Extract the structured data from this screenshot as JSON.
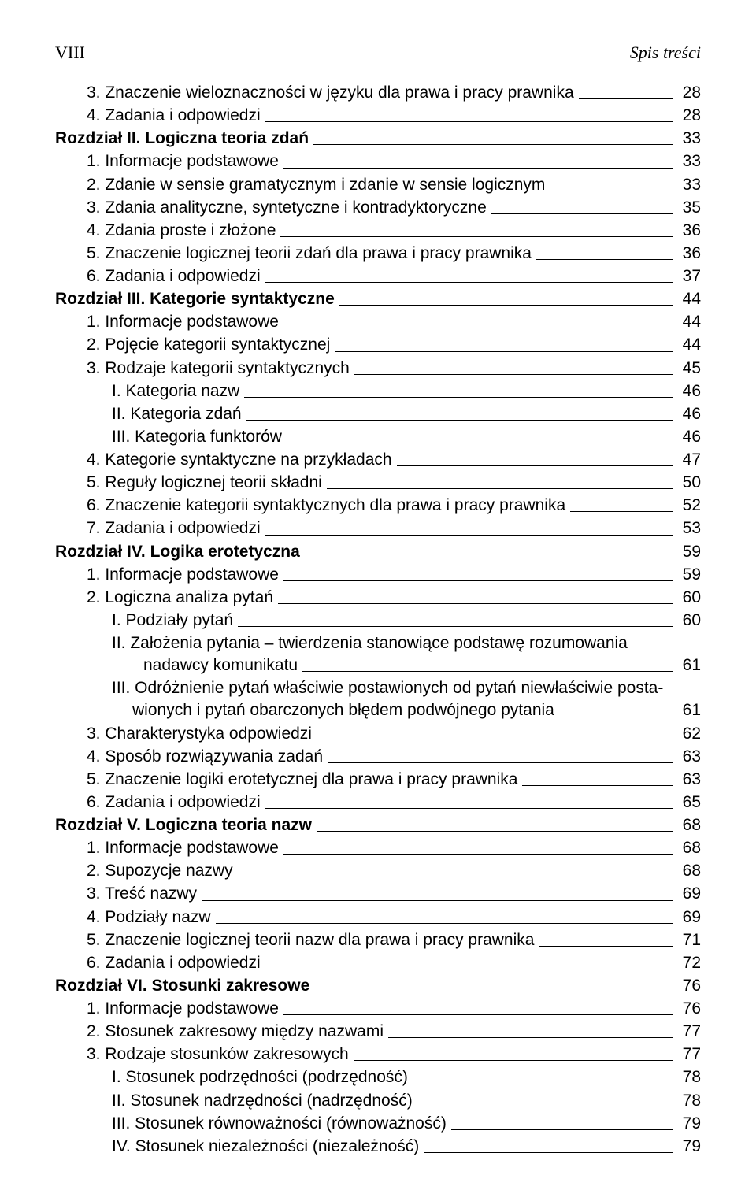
{
  "header": {
    "pageNum": "VIII",
    "sectionTitle": "Spis treści"
  },
  "entries": [
    {
      "label": "3. Znaczenie wieloznaczności w języku dla prawa i pracy prawnika",
      "page": "28",
      "indent": 1,
      "bold": false
    },
    {
      "label": "4. Zadania i odpowiedzi",
      "page": "28",
      "indent": 1,
      "bold": false
    },
    {
      "label": "Rozdział II. Logiczna teoria zdań",
      "page": "33",
      "indent": 0,
      "bold": true
    },
    {
      "label": "1. Informacje podstawowe",
      "page": "33",
      "indent": 1,
      "bold": false
    },
    {
      "label": "2. Zdanie w sensie gramatycznym i zdanie w sensie logicznym",
      "page": "33",
      "indent": 1,
      "bold": false
    },
    {
      "label": "3. Zdania analityczne, syntetyczne i kontradyktoryczne",
      "page": "35",
      "indent": 1,
      "bold": false
    },
    {
      "label": "4. Zdania proste i złożone",
      "page": "36",
      "indent": 1,
      "bold": false
    },
    {
      "label": "5. Znaczenie logicznej teorii zdań dla prawa i pracy prawnika",
      "page": "36",
      "indent": 1,
      "bold": false
    },
    {
      "label": "6. Zadania i odpowiedzi",
      "page": "37",
      "indent": 1,
      "bold": false
    },
    {
      "label": "Rozdział III. Kategorie syntaktyczne",
      "page": "44",
      "indent": 0,
      "bold": true
    },
    {
      "label": "1. Informacje podstawowe",
      "page": "44",
      "indent": 1,
      "bold": false
    },
    {
      "label": "2. Pojęcie kategorii syntaktycznej",
      "page": "44",
      "indent": 1,
      "bold": false
    },
    {
      "label": "3. Rodzaje kategorii syntaktycznych",
      "page": "45",
      "indent": 1,
      "bold": false
    },
    {
      "label": "I. Kategoria nazw",
      "page": "46",
      "indent": 2,
      "bold": false
    },
    {
      "label": "II. Kategoria zdań",
      "page": "46",
      "indent": 2,
      "bold": false
    },
    {
      "label": "III. Kategoria funktorów",
      "page": "46",
      "indent": 2,
      "bold": false
    },
    {
      "label": "4. Kategorie syntaktyczne na przykładach",
      "page": "47",
      "indent": 1,
      "bold": false
    },
    {
      "label": "5. Reguły logicznej teorii składni",
      "page": "50",
      "indent": 1,
      "bold": false
    },
    {
      "label": "6. Znaczenie kategorii syntaktycznych dla prawa i pracy prawnika",
      "page": "52",
      "indent": 1,
      "bold": false
    },
    {
      "label": "7. Zadania i odpowiedzi",
      "page": "53",
      "indent": 1,
      "bold": false
    },
    {
      "label": "Rozdział IV. Logika erotetyczna",
      "page": "59",
      "indent": 0,
      "bold": true
    },
    {
      "label": "1. Informacje podstawowe",
      "page": "59",
      "indent": 1,
      "bold": false
    },
    {
      "label": "2. Logiczna analiza pytań",
      "page": "60",
      "indent": 1,
      "bold": false
    },
    {
      "label": "I. Podziały pytań",
      "page": "60",
      "indent": 2,
      "bold": false
    },
    {
      "type": "multi",
      "indent": 2,
      "lines": [
        "II. Założenia pytania – twierdzenia stanowiące podstawę rozumowania",
        "nadawcy komunikatu"
      ],
      "page": "61",
      "continueIndent": "indent-continue"
    },
    {
      "type": "multi",
      "indent": 2,
      "lines": [
        "III. Odróżnienie pytań właściwie postawionych od pytań niewłaściwie posta-",
        "wionych i pytań obarczonych błędem podwójnego pytania"
      ],
      "page": "61",
      "continueIndent": "indent-continue-2"
    },
    {
      "label": "3. Charakterystyka odpowiedzi",
      "page": "62",
      "indent": 1,
      "bold": false
    },
    {
      "label": "4. Sposób rozwiązywania zadań",
      "page": "63",
      "indent": 1,
      "bold": false
    },
    {
      "label": "5. Znaczenie logiki erotetycznej dla prawa i pracy prawnika",
      "page": "63",
      "indent": 1,
      "bold": false
    },
    {
      "label": "6. Zadania i odpowiedzi",
      "page": "65",
      "indent": 1,
      "bold": false
    },
    {
      "label": "Rozdział V. Logiczna teoria nazw",
      "page": "68",
      "indent": 0,
      "bold": true
    },
    {
      "label": "1. Informacje podstawowe",
      "page": "68",
      "indent": 1,
      "bold": false
    },
    {
      "label": "2. Supozycje nazwy",
      "page": "68",
      "indent": 1,
      "bold": false
    },
    {
      "label": "3. Treść nazwy",
      "page": "69",
      "indent": 1,
      "bold": false
    },
    {
      "label": "4. Podziały nazw",
      "page": "69",
      "indent": 1,
      "bold": false
    },
    {
      "label": "5. Znaczenie logicznej teorii nazw dla prawa i pracy prawnika",
      "page": "71",
      "indent": 1,
      "bold": false
    },
    {
      "label": "6. Zadania i odpowiedzi",
      "page": "72",
      "indent": 1,
      "bold": false
    },
    {
      "label": "Rozdział VI. Stosunki zakresowe",
      "page": "76",
      "indent": 0,
      "bold": true
    },
    {
      "label": "1. Informacje podstawowe",
      "page": "76",
      "indent": 1,
      "bold": false
    },
    {
      "label": "2. Stosunek zakresowy między nazwami",
      "page": "77",
      "indent": 1,
      "bold": false
    },
    {
      "label": "3. Rodzaje stosunków zakresowych",
      "page": "77",
      "indent": 1,
      "bold": false
    },
    {
      "label": "I. Stosunek podrzędności (podrzędność)",
      "page": "78",
      "indent": 2,
      "bold": false
    },
    {
      "label": "II. Stosunek nadrzędności (nadrzędność)",
      "page": "78",
      "indent": 2,
      "bold": false
    },
    {
      "label": "III. Stosunek równoważności (równoważność)",
      "page": "79",
      "indent": 2,
      "bold": false
    },
    {
      "label": "IV. Stosunek niezależności (niezależność)",
      "page": "79",
      "indent": 2,
      "bold": false
    }
  ]
}
